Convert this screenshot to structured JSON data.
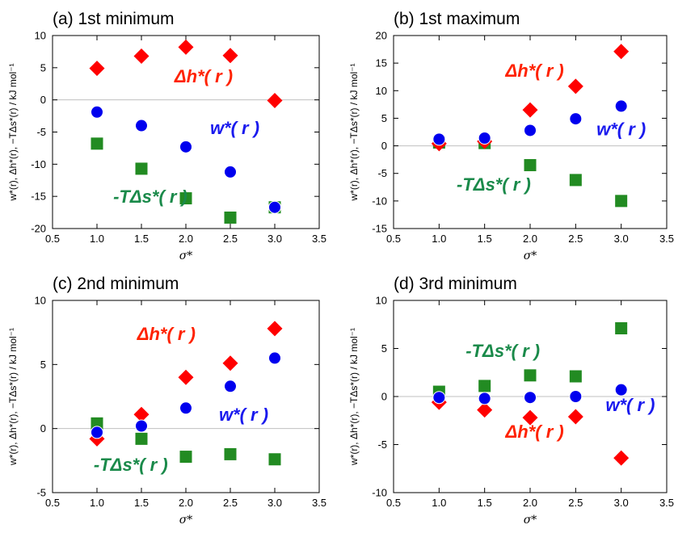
{
  "chart_data": [
    {
      "type": "scatter",
      "title": "(a) 1st minimum",
      "xlabel": "σ*",
      "ylabel": "w*(r), Δh*(r), −TΔs*(r) / kJ mol⁻¹",
      "xlim": [
        0.5,
        3.5
      ],
      "ylim": [
        -20,
        10
      ],
      "xticks": [
        "0.5",
        "1.0",
        "1.5",
        "2.0",
        "2.5",
        "3.0",
        "3.5"
      ],
      "yticks": [
        "-20",
        "-15",
        "-10",
        "-5",
        "0",
        "5",
        "10"
      ],
      "x": [
        1.0,
        1.5,
        2.0,
        2.5,
        3.0
      ],
      "series": [
        {
          "name": "Δh*( r )",
          "marker": "diamond",
          "color": "#ff0000",
          "values": [
            4.9,
            6.8,
            8.2,
            6.9,
            -0.1
          ]
        },
        {
          "name": "w*( r )",
          "marker": "circle",
          "color": "#0000ee",
          "values": [
            -1.9,
            -4.0,
            -7.3,
            -11.2,
            -16.7
          ]
        },
        {
          "name": "-TΔs*( r )",
          "marker": "square",
          "color": "#228b22",
          "values": [
            -6.8,
            -10.7,
            -15.3,
            -18.3,
            -16.7
          ]
        }
      ],
      "labels": [
        {
          "series": 0,
          "x": 2.2,
          "y": 2.7
        },
        {
          "series": 1,
          "x": 2.55,
          "y": -5.3
        },
        {
          "series": 2,
          "x": 1.6,
          "y": -16.0
        }
      ]
    },
    {
      "type": "scatter",
      "title": "(b) 1st maximum",
      "xlabel": "σ*",
      "ylabel": "w*(r), Δh*(r), −TΔs*(r) / kJ mol⁻¹",
      "xlim": [
        0.5,
        3.5
      ],
      "ylim": [
        -15,
        20
      ],
      "xticks": [
        "0.5",
        "1.0",
        "1.5",
        "2.0",
        "2.5",
        "3.0",
        "3.5"
      ],
      "yticks": [
        "-15",
        "-10",
        "-5",
        "0",
        "5",
        "10",
        "15",
        "20"
      ],
      "x": [
        1.0,
        1.5,
        2.0,
        2.5,
        3.0
      ],
      "series": [
        {
          "name": "Δh*( r )",
          "marker": "diamond",
          "color": "#ff0000",
          "values": [
            0.4,
            0.8,
            6.5,
            10.8,
            17.1
          ]
        },
        {
          "name": "w*( r )",
          "marker": "circle",
          "color": "#0000ee",
          "values": [
            1.2,
            1.4,
            2.8,
            4.9,
            7.2
          ]
        },
        {
          "name": "-TΔs*( r )",
          "marker": "square",
          "color": "#228b22",
          "values": [
            0.6,
            0.5,
            -3.5,
            -6.2,
            -10.0
          ]
        }
      ],
      "labels": [
        {
          "series": 0,
          "x": 2.05,
          "y": 12.5
        },
        {
          "series": 1,
          "x": 3.0,
          "y": 1.9
        },
        {
          "series": 2,
          "x": 1.6,
          "y": -8.1
        }
      ]
    },
    {
      "type": "scatter",
      "title": "(c) 2nd minimum",
      "xlabel": "σ*",
      "ylabel": "w*(r), Δh*(r), −TΔs*(r) / kJ mol⁻¹",
      "xlim": [
        0.5,
        3.5
      ],
      "ylim": [
        -5,
        10
      ],
      "xticks": [
        "0.5",
        "1.0",
        "1.5",
        "2.0",
        "2.5",
        "3.0",
        "3.5"
      ],
      "yticks": [
        "-5",
        "0",
        "5",
        "10"
      ],
      "x": [
        1.0,
        1.5,
        2.0,
        2.5,
        3.0
      ],
      "series": [
        {
          "name": "Δh*( r )",
          "marker": "diamond",
          "color": "#ff0000",
          "values": [
            -0.8,
            1.1,
            4.0,
            5.1,
            7.8
          ]
        },
        {
          "name": "w*( r )",
          "marker": "circle",
          "color": "#0000ee",
          "values": [
            -0.3,
            0.2,
            1.6,
            3.3,
            5.5
          ]
        },
        {
          "name": "-TΔs*( r )",
          "marker": "square",
          "color": "#228b22",
          "values": [
            0.4,
            -0.8,
            -2.2,
            -2.0,
            -2.4
          ]
        }
      ],
      "labels": [
        {
          "series": 0,
          "x": 1.78,
          "y": 6.9
        },
        {
          "series": 1,
          "x": 2.65,
          "y": 0.6
        },
        {
          "series": 2,
          "x": 1.38,
          "y": -3.3
        }
      ]
    },
    {
      "type": "scatter",
      "title": "(d) 3rd minimum",
      "xlabel": "σ*",
      "ylabel": "w*(r), Δh*(r), −TΔs*(r) / kJ mol⁻¹",
      "xlim": [
        0.5,
        3.5
      ],
      "ylim": [
        -10,
        10
      ],
      "xticks": [
        "0.5",
        "1.0",
        "1.5",
        "2.0",
        "2.5",
        "3.0",
        "3.5"
      ],
      "yticks": [
        "-10",
        "-5",
        "0",
        "5",
        "10"
      ],
      "x": [
        1.0,
        1.5,
        2.0,
        2.5,
        3.0
      ],
      "series": [
        {
          "name": "Δh*( r )",
          "marker": "diamond",
          "color": "#ff0000",
          "values": [
            -0.6,
            -1.4,
            -2.2,
            -2.1,
            -6.4
          ]
        },
        {
          "name": "w*( r )",
          "marker": "circle",
          "color": "#0000ee",
          "values": [
            -0.1,
            -0.2,
            -0.1,
            0.0,
            0.7
          ]
        },
        {
          "name": "-TΔs*( r )",
          "marker": "square",
          "color": "#228b22",
          "values": [
            0.5,
            1.1,
            2.2,
            2.1,
            7.1
          ]
        }
      ],
      "labels": [
        {
          "series": 0,
          "x": 2.05,
          "y": -4.3
        },
        {
          "series": 1,
          "x": 3.1,
          "y": -1.5
        },
        {
          "series": 2,
          "x": 1.7,
          "y": 4.1
        }
      ]
    }
  ]
}
